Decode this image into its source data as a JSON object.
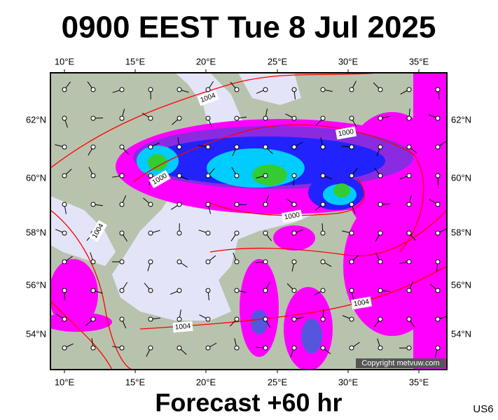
{
  "header": {
    "title": "0900 EEST Tue 8 Jul 2025"
  },
  "map": {
    "lon_labels": [
      "10°E",
      "15°E",
      "20°E",
      "25°E",
      "30°E",
      "35°E"
    ],
    "lat_labels": [
      "62°N",
      "60°N",
      "58°N",
      "56°N",
      "54°N"
    ],
    "isobar_labels": [
      "1004",
      "1000",
      "1000",
      "1000",
      "1004",
      "1004",
      "1004"
    ],
    "copyright": "Copyright metvuw.com"
  },
  "footer": {
    "caption": "Forecast +60 hr",
    "code": "US6"
  }
}
